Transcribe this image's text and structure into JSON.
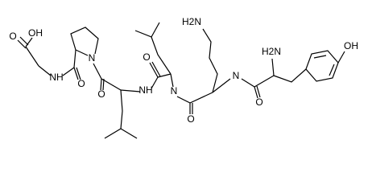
{
  "labels": [
    "O",
    "OH",
    "NH",
    "O",
    "N",
    "O",
    "NH",
    "O",
    "N",
    "O",
    "H2N",
    "N",
    "H2N",
    "O",
    "OH"
  ]
}
